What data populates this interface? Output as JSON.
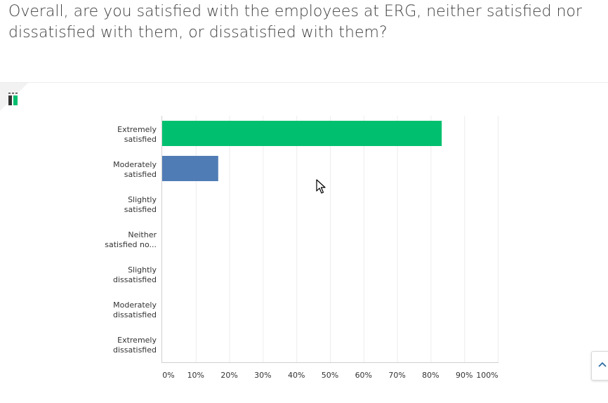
{
  "question": {
    "text": "Overall, are you satisfied with the employees at ERG, neither satisfied nor dissatisfied with them, or dissatisfied with them?"
  },
  "icons": {
    "chart_toggle": "bar-chart-icon",
    "scroll_top": "chevron-up-icon",
    "cursor": "mouse-pointer-icon"
  },
  "colors": {
    "extremely_satisfied": "#00bf6f",
    "moderately_satisfied": "#507cb6",
    "gridline": "#ececec",
    "axis": "#cfcfcf",
    "label_text": "#333333"
  },
  "chart_data": {
    "type": "bar",
    "orientation": "horizontal",
    "categories": [
      [
        "Extremely",
        "satisfied"
      ],
      [
        "Moderately",
        "satisfied"
      ],
      [
        "Slightly",
        "satisfied"
      ],
      [
        "Neither",
        "satisfied no..."
      ],
      [
        "Slightly",
        "dissatisfied"
      ],
      [
        "Moderately",
        "dissatisfied"
      ],
      [
        "Extremely",
        "dissatisfied"
      ]
    ],
    "values": [
      83.3,
      16.7,
      0,
      0,
      0,
      0,
      0
    ],
    "bar_colors": [
      "#00bf6f",
      "#507cb6",
      "#00bf6f",
      "#00bf6f",
      "#00bf6f",
      "#00bf6f",
      "#00bf6f"
    ],
    "x_ticks": [
      "0%",
      "10%",
      "20%",
      "30%",
      "40%",
      "50%",
      "60%",
      "70%",
      "80%",
      "90%",
      "100%"
    ],
    "xlim": [
      0,
      100
    ],
    "grid": true,
    "title": "",
    "xlabel": "",
    "ylabel": ""
  }
}
